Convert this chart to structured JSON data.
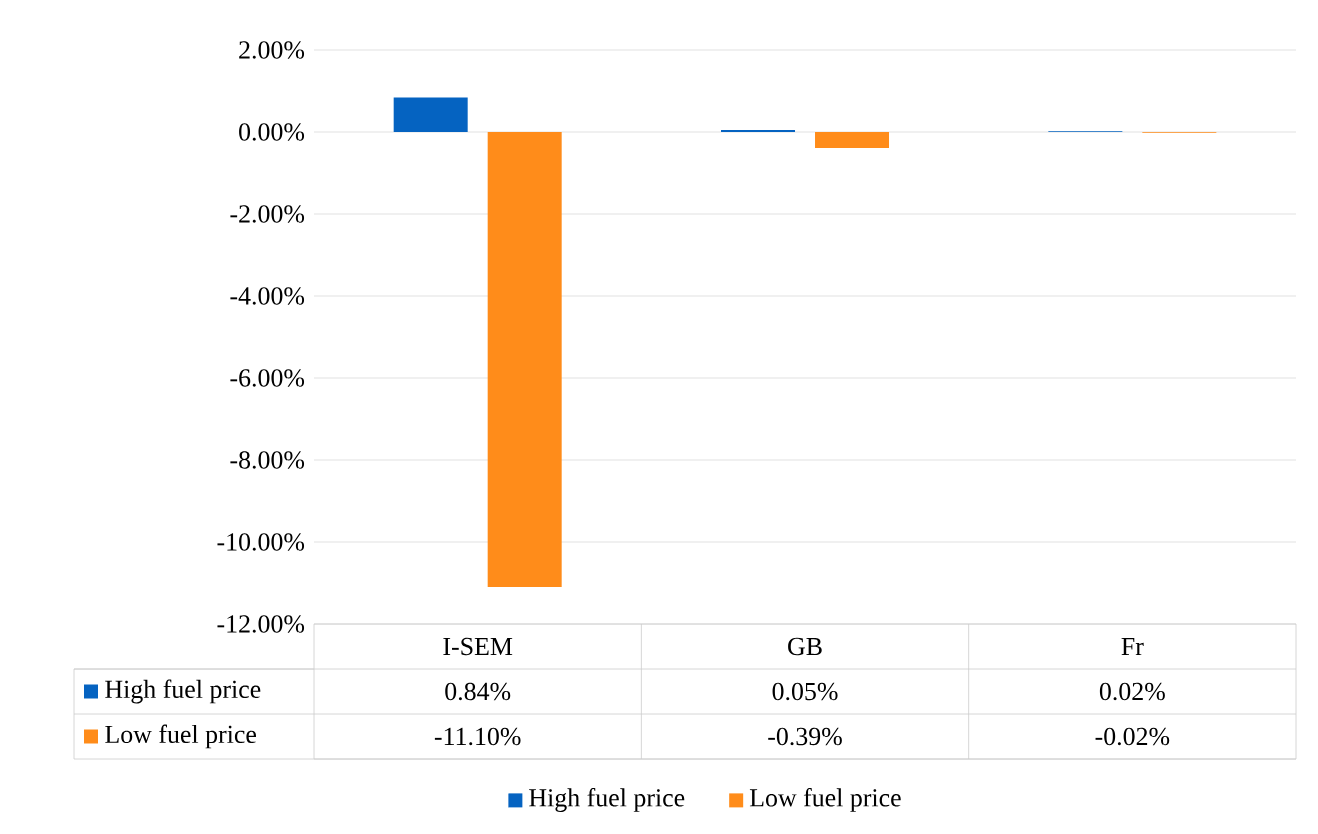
{
  "chart_data": {
    "type": "bar",
    "categories": [
      "I-SEM",
      "GB",
      "Fr"
    ],
    "series": [
      {
        "name": "High fuel price",
        "color": "#0563c1",
        "values": [
          0.84,
          0.05,
          0.02
        ],
        "value_labels": [
          "0.84%",
          "0.05%",
          "0.02%"
        ]
      },
      {
        "name": "Low fuel price",
        "color": "#ff8c1a",
        "values": [
          -11.1,
          -0.39,
          -0.02
        ],
        "value_labels": [
          "-11.10%",
          "-0.39%",
          "-0.02%"
        ]
      }
    ],
    "ylim": [
      -12,
      2
    ],
    "yticks": [
      {
        "value": 2,
        "label": "2.00%"
      },
      {
        "value": 0,
        "label": "0.00%"
      },
      {
        "value": -2,
        "label": "-2.00%"
      },
      {
        "value": -4,
        "label": "-4.00%"
      },
      {
        "value": -6,
        "label": "-6.00%"
      },
      {
        "value": -8,
        "label": "-8.00%"
      },
      {
        "value": -10,
        "label": "-10.00%"
      },
      {
        "value": -12,
        "label": "-12.00%"
      }
    ],
    "grid": "y",
    "legend": "bottom"
  }
}
